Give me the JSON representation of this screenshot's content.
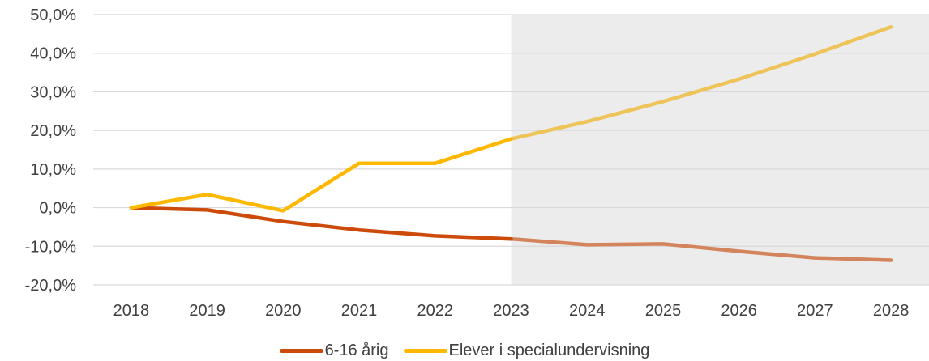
{
  "chart_data": {
    "type": "line",
    "categories": [
      "2018",
      "2019",
      "2020",
      "2021",
      "2022",
      "2023",
      "2024",
      "2025",
      "2026",
      "2027",
      "2028"
    ],
    "y_ticks": [
      "50,0%",
      "40,0%",
      "30,0%",
      "20,0%",
      "10,0%",
      "0,0%",
      "-10,0%",
      "-20,0%"
    ],
    "ylim": [
      -20,
      50
    ],
    "grid": true,
    "projection_region": {
      "from": "2023",
      "to": "2028",
      "color": "#ececec"
    },
    "legend_placement": "bottom-center",
    "series": [
      {
        "name": "6-16 årig",
        "color": "#cc4a0a",
        "projected_color": "#d4845c",
        "values": [
          0.0,
          -0.6,
          -3.6,
          -5.8,
          -7.3,
          -8.1,
          -9.6,
          -9.4,
          -11.3,
          -13.0,
          -13.6
        ]
      },
      {
        "name": "Elever i specialundervisning",
        "color": "#ffb800",
        "projected_color": "#eec45a",
        "values": [
          0.0,
          3.4,
          -0.8,
          11.5,
          11.5,
          17.8,
          22.3,
          27.5,
          33.3,
          39.8,
          46.8
        ]
      }
    ]
  }
}
